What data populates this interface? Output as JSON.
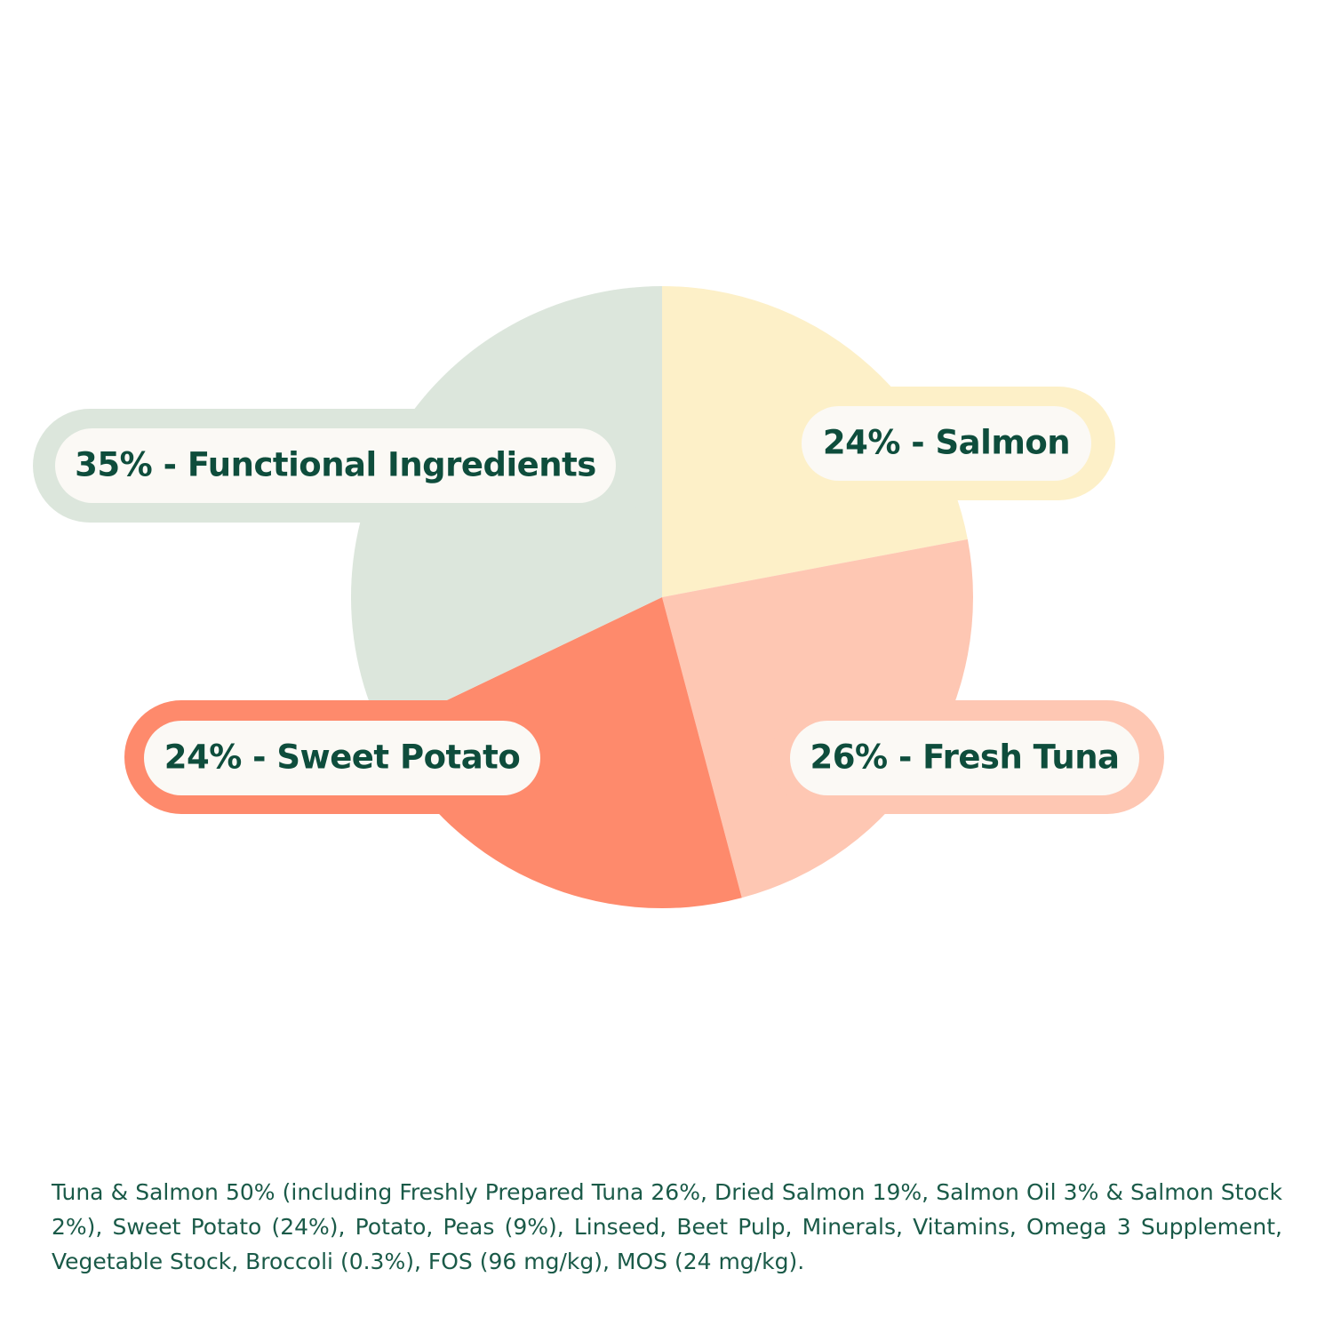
{
  "chart_data": {
    "type": "pie",
    "categories": [
      "24% - Salmon",
      "26% - Fresh Tuna",
      "24% - Sweet Potato",
      "35% - Functional Ingredients"
    ],
    "values": [
      24,
      26,
      24,
      35
    ],
    "colors": [
      "#fdf0c8",
      "#fec7b3",
      "#fe8a6c",
      "#dce6dc"
    ],
    "caption": "Tuna & Salmon 50% (including Freshly Prepared Tuna 26%, Dried Salmon 19%, Salmon Oil 3% & Salmon Stock 2%), Sweet Potato (24%), Potato, Peas (9%), Linseed, Beet Pulp, Minerals, Vitamins, Omega 3 Supplement, Vegetable Stock, Broccoli (0.3%), FOS (96 mg/kg), MOS (24 mg/kg)."
  }
}
